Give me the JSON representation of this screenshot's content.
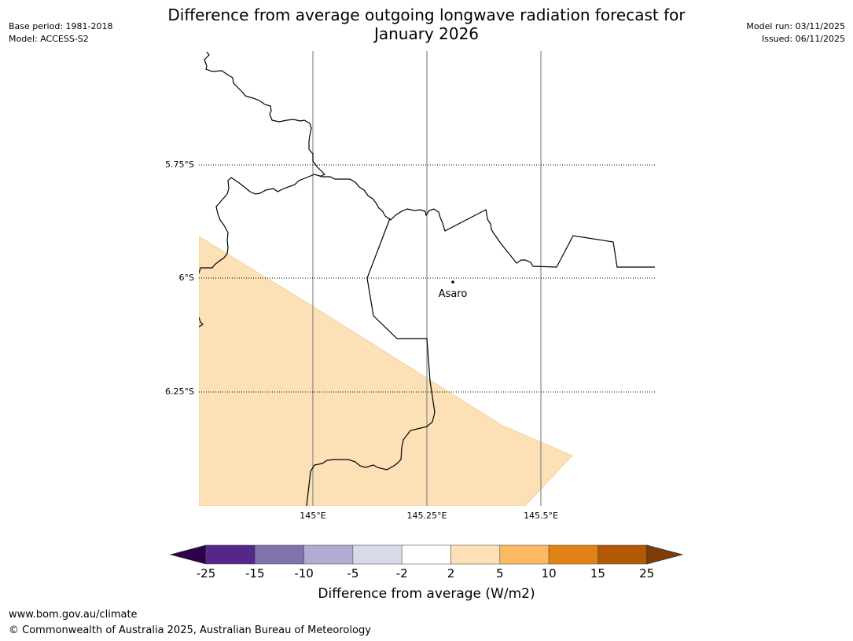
{
  "header": {
    "title_line1": "Difference from average outgoing longwave radiation forecast for",
    "title_line2": "January 2026",
    "base_period": "Base period: 1981-2018",
    "model": "Model: ACCESS-S2",
    "model_run": "Model run: 03/11/2025",
    "issued": "Issued: 06/11/2025"
  },
  "map": {
    "lat_labels": [
      "5.75°S",
      "6°S",
      "6.25°S"
    ],
    "lon_labels": [
      "145°E",
      "145.25°E",
      "145.5°E"
    ],
    "place": {
      "name": "Asaro"
    },
    "fill_category": "2 to 5",
    "fill_color": "#fce0b6"
  },
  "colorbar": {
    "label": "Difference from average (W/m2)",
    "ticks": [
      "-25",
      "-15",
      "-10",
      "-5",
      "-2",
      "2",
      "5",
      "10",
      "15",
      "25"
    ],
    "colors": [
      "#542788",
      "#8073ac",
      "#b2abd2",
      "#d8daeb",
      "#ffffff",
      "#fee0b6",
      "#fdb863",
      "#e08214",
      "#b35806"
    ],
    "under_color": "#2d004b",
    "over_color": "#7f3b08"
  },
  "footer": {
    "url": "www.bom.gov.au/climate",
    "copyright": "© Commonwealth of Australia 2025, Australian Bureau of Meteorology"
  }
}
